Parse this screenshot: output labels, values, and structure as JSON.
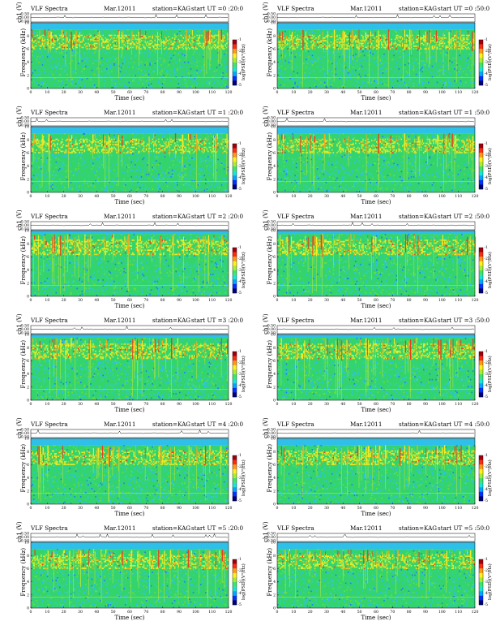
{
  "common": {
    "title": "VLF Spectra",
    "date": "Mar.12011",
    "station": "station=KAG",
    "xlabel": "Time (sec)",
    "ylabel_ch": "ch1 (V)",
    "ylabel_freq": "Frequency (kHz)",
    "colorbar_label": "log(PSD)(V²/Hz)",
    "ch_ticks": [
      "0.50",
      "0.00",
      "-0.50"
    ],
    "freq_ticks": [
      "0",
      "2",
      "4",
      "6",
      "8",
      "10"
    ],
    "time_ticks": [
      "0",
      "10",
      "20",
      "30",
      "40",
      "50",
      "60",
      "70",
      "80",
      "90",
      "100",
      "110",
      "120"
    ],
    "colorbar_ticks": [
      "-1",
      "-2",
      "-3",
      "-4",
      "-5"
    ]
  },
  "colors": {
    "noise_levels": [
      "#0a2fd8",
      "#1e7cf0",
      "#2ec0e8",
      "#2fd3b2",
      "#34d46c",
      "#6fde3a",
      "#c9e82c",
      "#f6ec24",
      "#f6a81c",
      "#e8401a",
      "#b3121a"
    ],
    "colorbar": [
      "#00007a",
      "#0033ff",
      "#00a8ff",
      "#19e6d9",
      "#3ce86c",
      "#aaee2c",
      "#fff01e",
      "#ff9a14",
      "#ff2a10",
      "#a0000c"
    ],
    "trace": "#000000"
  },
  "chart_data": [
    {
      "type": "heatmap",
      "start_label": "start UT =0 :20:0",
      "x_range": [
        0,
        120
      ],
      "y_range_khz": [
        0,
        10
      ],
      "ch_range_v": [
        -0.5,
        0.5
      ],
      "band_top_khz": 9.0
    },
    {
      "type": "heatmap",
      "start_label": "start UT =0 :50:0",
      "x_range": [
        0,
        120
      ],
      "y_range_khz": [
        0,
        10
      ],
      "ch_range_v": [
        -0.5,
        0.5
      ],
      "band_top_khz": 9.0
    },
    {
      "type": "heatmap",
      "start_label": "start UT =1 :20:0",
      "x_range": [
        0,
        120
      ],
      "y_range_khz": [
        0,
        10
      ],
      "ch_range_v": [
        -0.5,
        0.5
      ],
      "band_top_khz": 9.0
    },
    {
      "type": "heatmap",
      "start_label": "start UT =1 :50:0",
      "x_range": [
        0,
        120
      ],
      "y_range_khz": [
        0,
        10
      ],
      "ch_range_v": [
        -0.5,
        0.5
      ],
      "band_top_khz": 9.0
    },
    {
      "type": "heatmap",
      "start_label": "start UT =2 :20:0",
      "x_range": [
        0,
        120
      ],
      "y_range_khz": [
        0,
        10
      ],
      "ch_range_v": [
        -0.5,
        0.5
      ],
      "band_top_khz": 9.5
    },
    {
      "type": "heatmap",
      "start_label": "start UT =2 :50:0",
      "x_range": [
        0,
        120
      ],
      "y_range_khz": [
        0,
        10
      ],
      "ch_range_v": [
        -0.5,
        0.5
      ],
      "band_top_khz": 9.5
    },
    {
      "type": "heatmap",
      "start_label": "start UT =3 :20:0",
      "x_range": [
        0,
        120
      ],
      "y_range_khz": [
        0,
        10
      ],
      "ch_range_v": [
        -0.5,
        0.5
      ],
      "band_top_khz": 9.5
    },
    {
      "type": "heatmap",
      "start_label": "start UT =3 :50:0",
      "x_range": [
        0,
        120
      ],
      "y_range_khz": [
        0,
        10
      ],
      "ch_range_v": [
        -0.5,
        0.5
      ],
      "band_top_khz": 9.5
    },
    {
      "type": "heatmap",
      "start_label": "start UT =4 :20:0",
      "x_range": [
        0,
        120
      ],
      "y_range_khz": [
        0,
        10
      ],
      "ch_range_v": [
        -0.5,
        0.5
      ],
      "band_top_khz": 9.0
    },
    {
      "type": "heatmap",
      "start_label": "start UT =4 :50:0",
      "x_range": [
        0,
        120
      ],
      "y_range_khz": [
        0,
        10
      ],
      "ch_range_v": [
        -0.5,
        0.5
      ],
      "band_top_khz": 9.0
    },
    {
      "type": "heatmap",
      "start_label": "start UT =5 :20:0",
      "x_range": [
        0,
        120
      ],
      "y_range_khz": [
        0,
        10
      ],
      "ch_range_v": [
        -0.5,
        0.5
      ],
      "band_top_khz": 9.0
    },
    {
      "type": "heatmap",
      "start_label": "start UT =5 :50:0",
      "x_range": [
        0,
        120
      ],
      "y_range_khz": [
        0,
        10
      ],
      "ch_range_v": [
        -0.5,
        0.5
      ],
      "band_top_khz": 9.0
    }
  ]
}
